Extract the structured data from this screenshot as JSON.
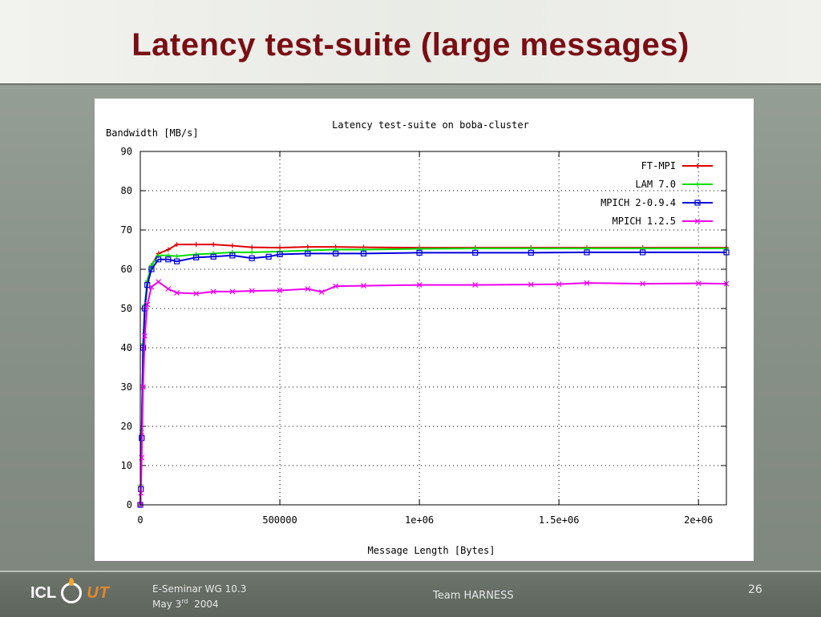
{
  "slide": {
    "title": "Latency test-suite (large messages)"
  },
  "footer": {
    "logo_left": "ICL",
    "logo_right": "UT",
    "seminar": "E-Seminar WG 10.3",
    "date_month": "May 3",
    "date_suffix": "rd",
    "date_year": "2004",
    "team": "Team HARNESS",
    "page_number": "26"
  },
  "colors": {
    "title": "#7a0e14",
    "ft_mpi": "#e00000",
    "lam": "#00dd00",
    "mpich2": "#0000dd",
    "mpich1": "#ee00ee"
  },
  "chart_data": {
    "type": "line",
    "title": "Latency test-suite on boba-cluster",
    "xlabel": "Message Length [Bytes]",
    "ylabel": "Bandwidth [MB/s]",
    "xlim": [
      0,
      2100000
    ],
    "ylim": [
      0,
      90
    ],
    "x_ticks": [
      {
        "value": 0,
        "label": "0"
      },
      {
        "value": 500000,
        "label": "500000"
      },
      {
        "value": 1000000,
        "label": "1e+06"
      },
      {
        "value": 1500000,
        "label": "1.5e+06"
      },
      {
        "value": 2000000,
        "label": "2e+06"
      }
    ],
    "y_ticks": [
      {
        "value": 0,
        "label": "0"
      },
      {
        "value": 10,
        "label": "10"
      },
      {
        "value": 20,
        "label": "20"
      },
      {
        "value": 30,
        "label": "30"
      },
      {
        "value": 40,
        "label": "40"
      },
      {
        "value": 50,
        "label": "50"
      },
      {
        "value": 60,
        "label": "60"
      },
      {
        "value": 70,
        "label": "70"
      },
      {
        "value": 80,
        "label": "80"
      },
      {
        "value": 90,
        "label": "90"
      }
    ],
    "grid": true,
    "legend_position": "top-right",
    "series": [
      {
        "name": "FT-MPI",
        "color": "#e00000",
        "marker": "plus",
        "points": [
          [
            0,
            0
          ],
          [
            2000,
            5
          ],
          [
            5000,
            18
          ],
          [
            10000,
            40
          ],
          [
            16000,
            50
          ],
          [
            25000,
            57
          ],
          [
            40000,
            61
          ],
          [
            65000,
            64
          ],
          [
            100000,
            65
          ],
          [
            131000,
            66.3
          ],
          [
            200000,
            66.3
          ],
          [
            262000,
            66.3
          ],
          [
            330000,
            66
          ],
          [
            400000,
            65.6
          ],
          [
            500000,
            65.5
          ],
          [
            600000,
            65.7
          ],
          [
            700000,
            65.7
          ],
          [
            800000,
            65.6
          ],
          [
            1000000,
            65.5
          ],
          [
            1200000,
            65.5
          ],
          [
            1400000,
            65.5
          ],
          [
            1600000,
            65.5
          ],
          [
            1800000,
            65.5
          ],
          [
            2100000,
            65.5
          ]
        ]
      },
      {
        "name": "LAM 7.0",
        "color": "#00dd00",
        "marker": "plus",
        "points": [
          [
            0,
            0
          ],
          [
            2000,
            5
          ],
          [
            5000,
            19
          ],
          [
            10000,
            41
          ],
          [
            16000,
            51
          ],
          [
            25000,
            57
          ],
          [
            40000,
            61
          ],
          [
            65000,
            63.5
          ],
          [
            100000,
            63.5
          ],
          [
            131000,
            63.3
          ],
          [
            200000,
            63.8
          ],
          [
            262000,
            64
          ],
          [
            330000,
            64.3
          ],
          [
            400000,
            64.3
          ],
          [
            500000,
            64.5
          ],
          [
            600000,
            64.8
          ],
          [
            700000,
            65
          ],
          [
            800000,
            65
          ],
          [
            1000000,
            65.2
          ],
          [
            1200000,
            65.3
          ],
          [
            1400000,
            65.3
          ],
          [
            1600000,
            65.3
          ],
          [
            1800000,
            65.3
          ],
          [
            2100000,
            65.3
          ]
        ]
      },
      {
        "name": "MPICH 2-0.9.4",
        "color": "#0000dd",
        "marker": "square",
        "points": [
          [
            0,
            0
          ],
          [
            2000,
            4
          ],
          [
            5000,
            17
          ],
          [
            10000,
            40
          ],
          [
            16000,
            50
          ],
          [
            25000,
            56
          ],
          [
            40000,
            60
          ],
          [
            65000,
            62.5
          ],
          [
            100000,
            62.5
          ],
          [
            131000,
            62
          ],
          [
            200000,
            63
          ],
          [
            262000,
            63.2
          ],
          [
            330000,
            63.5
          ],
          [
            400000,
            62.8
          ],
          [
            460000,
            63.2
          ],
          [
            500000,
            63.8
          ],
          [
            600000,
            64
          ],
          [
            700000,
            64
          ],
          [
            800000,
            64
          ],
          [
            1000000,
            64.2
          ],
          [
            1200000,
            64.2
          ],
          [
            1400000,
            64.2
          ],
          [
            1600000,
            64.3
          ],
          [
            1800000,
            64.3
          ],
          [
            2100000,
            64.3
          ]
        ]
      },
      {
        "name": "MPICH 1.2.5",
        "color": "#ee00ee",
        "marker": "x",
        "points": [
          [
            0,
            0
          ],
          [
            2000,
            3
          ],
          [
            5000,
            12
          ],
          [
            10000,
            30
          ],
          [
            16000,
            43
          ],
          [
            25000,
            51
          ],
          [
            40000,
            55.5
          ],
          [
            65000,
            56.8
          ],
          [
            100000,
            55
          ],
          [
            131000,
            54
          ],
          [
            200000,
            53.8
          ],
          [
            262000,
            54.3
          ],
          [
            330000,
            54.3
          ],
          [
            400000,
            54.5
          ],
          [
            500000,
            54.6
          ],
          [
            600000,
            55
          ],
          [
            650000,
            54.2
          ],
          [
            700000,
            55.7
          ],
          [
            800000,
            55.8
          ],
          [
            1000000,
            56
          ],
          [
            1200000,
            56
          ],
          [
            1400000,
            56.1
          ],
          [
            1500000,
            56.2
          ],
          [
            1600000,
            56.5
          ],
          [
            1800000,
            56.3
          ],
          [
            2000000,
            56.4
          ],
          [
            2100000,
            56.3
          ]
        ]
      }
    ]
  }
}
